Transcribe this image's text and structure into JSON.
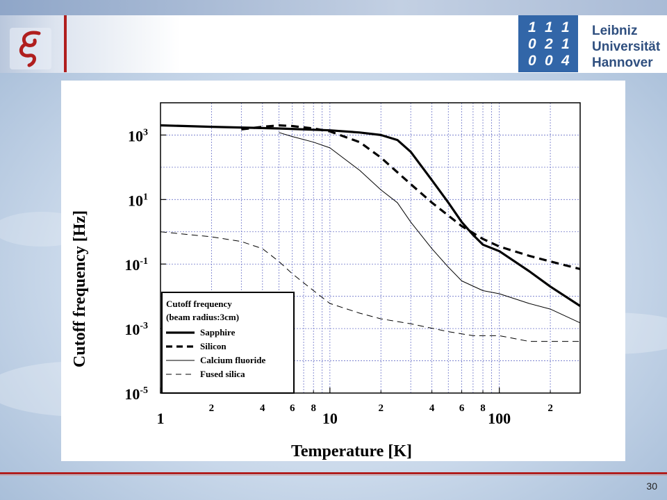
{
  "header": {
    "university_logo_digits": [
      "1",
      "1",
      "1",
      "0",
      "2",
      "1",
      "0",
      "0",
      "4"
    ],
    "university_name_lines": [
      "Leibniz",
      "Universität",
      "Hannover"
    ]
  },
  "footer": {
    "page_number": "30"
  },
  "colors": {
    "accent_red": "#b01e1e",
    "uni_blue": "#3266a8",
    "uni_text": "#2f4f7f"
  },
  "chart_data": {
    "type": "line",
    "xscale": "log",
    "yscale": "log",
    "xlim": [
      1,
      300
    ],
    "ylim": [
      1e-05,
      10000
    ],
    "grid": true,
    "xlabel": "Temperature [K]",
    "ylabel": "Cutoff frequency [Hz]",
    "x_major_ticks": [
      {
        "value": 1,
        "label": "1"
      },
      {
        "value": 10,
        "label": "10"
      },
      {
        "value": 100,
        "label": "100"
      }
    ],
    "x_minor_ticks": [
      {
        "value": 2,
        "label": "2"
      },
      {
        "value": 4,
        "label": "4"
      },
      {
        "value": 6,
        "label": "6"
      },
      {
        "value": 8,
        "label": "8"
      },
      {
        "value": 20,
        "label": "2"
      },
      {
        "value": 40,
        "label": "4"
      },
      {
        "value": 60,
        "label": "6"
      },
      {
        "value": 80,
        "label": "8"
      },
      {
        "value": 200,
        "label": "2"
      }
    ],
    "y_ticks": [
      {
        "value": 1000,
        "base": "10",
        "exp": "3"
      },
      {
        "value": 10,
        "base": "10",
        "exp": "1"
      },
      {
        "value": 0.1,
        "base": "10",
        "exp": "-1"
      },
      {
        "value": 0.001,
        "base": "10",
        "exp": "-3"
      },
      {
        "value": 1e-05,
        "base": "10",
        "exp": "-5"
      }
    ],
    "legend": {
      "position": "bottom-left",
      "title_lines": [
        "Cutoff frequency",
        "(beam radius:3cm)"
      ]
    },
    "series": [
      {
        "name": "Sapphire",
        "style": "thick-solid",
        "x": [
          1,
          2,
          5,
          10,
          15,
          20,
          25,
          30,
          40,
          50,
          60,
          70,
          80,
          100,
          150,
          200,
          300
        ],
        "y": [
          2000,
          1800,
          1600,
          1400,
          1200,
          1000,
          700,
          300,
          40,
          8,
          2,
          0.8,
          0.4,
          0.25,
          0.06,
          0.02,
          0.005
        ]
      },
      {
        "name": "Silicon",
        "style": "thick-dashed",
        "x": [
          3,
          4,
          5,
          6,
          8,
          10,
          15,
          20,
          30,
          40,
          60,
          80,
          100,
          150,
          200,
          300
        ],
        "y": [
          1500,
          1800,
          2000,
          1900,
          1600,
          1300,
          600,
          200,
          30,
          8,
          1.5,
          0.6,
          0.35,
          0.18,
          0.12,
          0.07
        ]
      },
      {
        "name": "Calcium fluoride",
        "style": "thin-solid",
        "x": [
          5,
          6,
          8,
          10,
          15,
          20,
          25,
          30,
          40,
          50,
          60,
          80,
          100,
          150,
          200,
          300
        ],
        "y": [
          1200,
          900,
          600,
          400,
          80,
          20,
          8,
          2,
          0.3,
          0.08,
          0.03,
          0.015,
          0.012,
          0.006,
          0.004,
          0.0015
        ]
      },
      {
        "name": "Fused silica",
        "style": "thin-dashed",
        "x": [
          1,
          2,
          3,
          4,
          5,
          6,
          8,
          10,
          15,
          20,
          30,
          50,
          70,
          100,
          150,
          200,
          300
        ],
        "y": [
          1,
          0.7,
          0.5,
          0.3,
          0.12,
          0.05,
          0.015,
          0.006,
          0.003,
          0.002,
          0.0014,
          0.0008,
          0.0006,
          0.0006,
          0.0004,
          0.0004,
          0.0004
        ]
      }
    ]
  }
}
